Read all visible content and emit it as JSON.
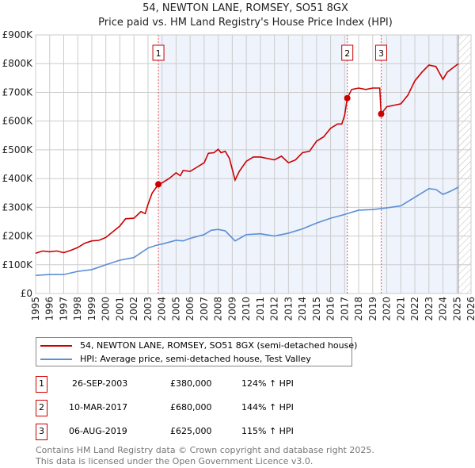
{
  "title": "54, NEWTON LANE, ROMSEY, SO51 8GX",
  "subtitle": "Price paid vs. HM Land Registry's House Price Index (HPI)",
  "colors": {
    "property": "#cc0000",
    "hpi": "#5b8fd6",
    "shade": "#eef3fc"
  },
  "chart_data": {
    "type": "line",
    "title": "54, NEWTON LANE, ROMSEY, SO51 8GX — Price paid vs. HM Land Registry's House Price Index (HPI)",
    "xlim": [
      1995,
      2026
    ],
    "ylim": [
      0,
      900000
    ],
    "x_ticks": [
      "1995",
      "1996",
      "1997",
      "1998",
      "1999",
      "2000",
      "2001",
      "2002",
      "2003",
      "2004",
      "2005",
      "2006",
      "2007",
      "2008",
      "2009",
      "2010",
      "2011",
      "2012",
      "2013",
      "2014",
      "2015",
      "2016",
      "2017",
      "2018",
      "2019",
      "2020",
      "2021",
      "2022",
      "2023",
      "2024",
      "2025",
      "2026"
    ],
    "y_ticks": [
      {
        "v": 0,
        "label": "£0"
      },
      {
        "v": 100000,
        "label": "£100K"
      },
      {
        "v": 200000,
        "label": "£200K"
      },
      {
        "v": 300000,
        "label": "£300K"
      },
      {
        "v": 400000,
        "label": "£400K"
      },
      {
        "v": 500000,
        "label": "£500K"
      },
      {
        "v": 600000,
        "label": "£600K"
      },
      {
        "v": 700000,
        "label": "£700K"
      },
      {
        "v": 800000,
        "label": "£800K"
      },
      {
        "v": 900000,
        "label": "£900K"
      }
    ],
    "grid": true,
    "series": [
      {
        "name": "54, NEWTON LANE, ROMSEY, SO51 8GX (semi-detached house)",
        "color": "#cc0000",
        "x": [
          1995,
          1995.5,
          1996,
          1996.5,
          1997,
          1997.5,
          1998,
          1998.5,
          1999,
          1999.5,
          2000,
          2000.5,
          2001,
          2001.4,
          2002,
          2002.5,
          2002.8,
          2003,
          2003.3,
          2003.74,
          2004,
          2004.5,
          2005,
          2005.3,
          2005.5,
          2006,
          2006.5,
          2007,
          2007.3,
          2007.7,
          2008,
          2008.2,
          2008.5,
          2008.8,
          2009.2,
          2009.5,
          2010,
          2010.5,
          2011,
          2011.5,
          2012,
          2012.5,
          2013,
          2013.5,
          2014,
          2014.5,
          2015,
          2015.5,
          2016,
          2016.5,
          2016.8,
          2017.0,
          2017.19,
          2017.5,
          2018,
          2018.5,
          2019,
          2019.5,
          2019.6,
          2020,
          2020.5,
          2021,
          2021.5,
          2022,
          2022.5,
          2023,
          2023.5,
          2024,
          2024.3,
          2024.7,
          2025.1
        ],
        "y": [
          140000,
          148000,
          145000,
          148000,
          142000,
          150000,
          160000,
          175000,
          183000,
          185000,
          195000,
          215000,
          235000,
          260000,
          262000,
          285000,
          278000,
          310000,
          350000,
          380000,
          385000,
          400000,
          420000,
          410000,
          428000,
          425000,
          440000,
          455000,
          488000,
          490000,
          502000,
          490000,
          495000,
          470000,
          395000,
          425000,
          460000,
          475000,
          475000,
          470000,
          465000,
          478000,
          455000,
          465000,
          490000,
          495000,
          530000,
          545000,
          575000,
          590000,
          590000,
          620000,
          680000,
          710000,
          715000,
          710000,
          715000,
          715000,
          625000,
          650000,
          655000,
          660000,
          690000,
          740000,
          770000,
          795000,
          790000,
          745000,
          770000,
          785000,
          800000
        ]
      },
      {
        "name": "HPI: Average price, semi-detached house, Test Valley",
        "color": "#5b8fd6",
        "x": [
          1995,
          1996,
          1997,
          1998,
          1999,
          2000,
          2001,
          2002,
          2003,
          2003.74,
          2004,
          2005,
          2005.5,
          2006,
          2007,
          2007.5,
          2008,
          2008.5,
          2009.2,
          2010,
          2011,
          2012,
          2013,
          2014,
          2015,
          2016,
          2017,
          2018,
          2019,
          2020,
          2021,
          2022,
          2023,
          2023.5,
          2024,
          2024.5,
          2025.1
        ],
        "y": [
          63000,
          66000,
          66000,
          77000,
          83000,
          100000,
          116000,
          125000,
          158000,
          170000,
          172000,
          185000,
          183000,
          192000,
          205000,
          220000,
          223000,
          218000,
          183000,
          205000,
          208000,
          200000,
          210000,
          225000,
          245000,
          262000,
          275000,
          290000,
          292000,
          298000,
          305000,
          335000,
          365000,
          362000,
          345000,
          355000,
          370000
        ]
      }
    ],
    "sales": [
      {
        "label": "1",
        "x": 2003.74,
        "y": 380000,
        "date": "26-SEP-2003",
        "price": "£380,000",
        "hpi": "124% ↑ HPI"
      },
      {
        "label": "2",
        "x": 2017.19,
        "y": 680000,
        "date": "10-MAR-2017",
        "price": "£680,000",
        "hpi": "144% ↑ HPI"
      },
      {
        "label": "3",
        "x": 2019.6,
        "y": 625000,
        "date": "06-AUG-2019",
        "price": "£625,000",
        "hpi": "115% ↑ HPI"
      }
    ],
    "data_end": 2025.1
  },
  "legend": {
    "property": "54, NEWTON LANE, ROMSEY, SO51 8GX (semi-detached house)",
    "hpi": "HPI: Average price, semi-detached house, Test Valley"
  },
  "footer": [
    "Contains HM Land Registry data © Crown copyright and database right 2025.",
    "This data is licensed under the Open Government Licence v3.0."
  ]
}
